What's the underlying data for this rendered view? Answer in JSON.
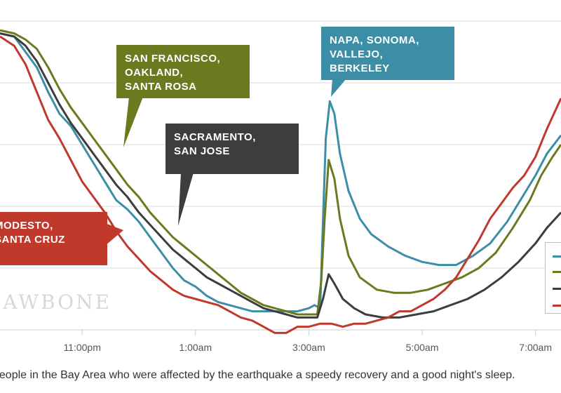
{
  "chart_data": {
    "type": "line",
    "title": "",
    "xlabel": "",
    "ylabel": "",
    "x_ticks": [
      "11:00pm",
      "1:00am",
      "3:00am",
      "5:00am",
      "7:00am"
    ],
    "x_tick_hours": [
      -1,
      1,
      3,
      5,
      7
    ],
    "xlim": [
      -2.45,
      7.45
    ],
    "ylim": [
      0,
      100
    ],
    "grid_y": [
      20,
      40,
      60,
      80,
      100
    ],
    "series": [
      {
        "name": "NAPA, SONOMA, VALLEJO, BERKELEY",
        "color": "#3b8ea5",
        "points": [
          [
            -2.45,
            96
          ],
          [
            -2.2,
            95
          ],
          [
            -2.0,
            90
          ],
          [
            -1.8,
            85
          ],
          [
            -1.6,
            77
          ],
          [
            -1.4,
            70
          ],
          [
            -1.2,
            66
          ],
          [
            -1.0,
            60
          ],
          [
            -0.8,
            54
          ],
          [
            -0.6,
            48
          ],
          [
            -0.4,
            42
          ],
          [
            -0.2,
            39
          ],
          [
            0.0,
            35
          ],
          [
            0.2,
            30
          ],
          [
            0.4,
            25
          ],
          [
            0.6,
            20
          ],
          [
            0.8,
            16
          ],
          [
            1.0,
            14
          ],
          [
            1.2,
            11
          ],
          [
            1.4,
            9
          ],
          [
            1.6,
            8
          ],
          [
            1.8,
            7
          ],
          [
            2.0,
            6
          ],
          [
            2.2,
            6
          ],
          [
            2.4,
            6
          ],
          [
            2.6,
            6
          ],
          [
            2.8,
            6
          ],
          [
            3.0,
            7
          ],
          [
            3.1,
            8
          ],
          [
            3.2,
            7
          ],
          [
            3.24,
            30
          ],
          [
            3.3,
            62
          ],
          [
            3.37,
            74
          ],
          [
            3.45,
            70
          ],
          [
            3.55,
            57
          ],
          [
            3.7,
            45
          ],
          [
            3.9,
            36
          ],
          [
            4.1,
            31
          ],
          [
            4.4,
            27
          ],
          [
            4.7,
            24
          ],
          [
            5.0,
            22
          ],
          [
            5.3,
            21
          ],
          [
            5.6,
            21
          ],
          [
            5.9,
            24
          ],
          [
            6.2,
            28
          ],
          [
            6.5,
            35
          ],
          [
            6.8,
            44
          ],
          [
            7.0,
            50
          ],
          [
            7.2,
            57
          ],
          [
            7.45,
            63
          ]
        ]
      },
      {
        "name": "SAN FRANCISCO, OAKLAND, SANTA ROSA",
        "color": "#6b7a1e",
        "points": [
          [
            -2.45,
            97
          ],
          [
            -2.2,
            96
          ],
          [
            -2.0,
            94
          ],
          [
            -1.8,
            91
          ],
          [
            -1.6,
            85
          ],
          [
            -1.4,
            78
          ],
          [
            -1.2,
            72
          ],
          [
            -1.0,
            67
          ],
          [
            -0.8,
            62
          ],
          [
            -0.6,
            57
          ],
          [
            -0.4,
            52
          ],
          [
            -0.2,
            47
          ],
          [
            0.0,
            43
          ],
          [
            0.2,
            38
          ],
          [
            0.4,
            34
          ],
          [
            0.6,
            30
          ],
          [
            0.8,
            27
          ],
          [
            1.0,
            24
          ],
          [
            1.2,
            21
          ],
          [
            1.4,
            18
          ],
          [
            1.6,
            15
          ],
          [
            1.8,
            12
          ],
          [
            2.0,
            10
          ],
          [
            2.2,
            8
          ],
          [
            2.4,
            7
          ],
          [
            2.6,
            6
          ],
          [
            2.8,
            5
          ],
          [
            3.0,
            5
          ],
          [
            3.15,
            5
          ],
          [
            3.22,
            16
          ],
          [
            3.28,
            36
          ],
          [
            3.35,
            55
          ],
          [
            3.45,
            49
          ],
          [
            3.55,
            36
          ],
          [
            3.7,
            24
          ],
          [
            3.9,
            17
          ],
          [
            4.2,
            13
          ],
          [
            4.5,
            12
          ],
          [
            4.8,
            12
          ],
          [
            5.1,
            13
          ],
          [
            5.4,
            15
          ],
          [
            5.7,
            17
          ],
          [
            6.0,
            20
          ],
          [
            6.3,
            25
          ],
          [
            6.6,
            33
          ],
          [
            6.9,
            42
          ],
          [
            7.1,
            50
          ],
          [
            7.3,
            56
          ],
          [
            7.45,
            60
          ]
        ]
      },
      {
        "name": "SACRAMENTO, SAN JOSE",
        "color": "#3d3d3d",
        "points": [
          [
            -2.45,
            96
          ],
          [
            -2.2,
            95
          ],
          [
            -2.0,
            92
          ],
          [
            -1.8,
            87
          ],
          [
            -1.6,
            80
          ],
          [
            -1.4,
            73
          ],
          [
            -1.2,
            67
          ],
          [
            -1.0,
            62
          ],
          [
            -0.8,
            57
          ],
          [
            -0.6,
            52
          ],
          [
            -0.4,
            47
          ],
          [
            -0.2,
            43
          ],
          [
            0.0,
            38
          ],
          [
            0.2,
            34
          ],
          [
            0.4,
            30
          ],
          [
            0.6,
            26
          ],
          [
            0.8,
            23
          ],
          [
            1.0,
            20
          ],
          [
            1.2,
            17
          ],
          [
            1.4,
            15
          ],
          [
            1.6,
            13
          ],
          [
            1.8,
            11
          ],
          [
            2.0,
            9
          ],
          [
            2.2,
            7
          ],
          [
            2.4,
            6
          ],
          [
            2.6,
            5
          ],
          [
            2.8,
            4
          ],
          [
            3.0,
            4
          ],
          [
            3.15,
            4
          ],
          [
            3.25,
            10
          ],
          [
            3.35,
            18
          ],
          [
            3.45,
            15
          ],
          [
            3.6,
            10
          ],
          [
            3.8,
            7
          ],
          [
            4.0,
            5
          ],
          [
            4.3,
            4
          ],
          [
            4.6,
            4
          ],
          [
            4.9,
            5
          ],
          [
            5.2,
            6
          ],
          [
            5.5,
            8
          ],
          [
            5.8,
            10
          ],
          [
            6.1,
            13
          ],
          [
            6.4,
            17
          ],
          [
            6.7,
            22
          ],
          [
            7.0,
            28
          ],
          [
            7.2,
            33
          ],
          [
            7.45,
            38
          ]
        ]
      },
      {
        "name": "MODESTO, SANTA CRUZ",
        "color": "#c0392b",
        "points": [
          [
            -2.45,
            95
          ],
          [
            -2.2,
            92
          ],
          [
            -2.0,
            86
          ],
          [
            -1.8,
            77
          ],
          [
            -1.6,
            68
          ],
          [
            -1.4,
            62
          ],
          [
            -1.2,
            55
          ],
          [
            -1.0,
            48
          ],
          [
            -0.8,
            43
          ],
          [
            -0.6,
            38
          ],
          [
            -0.4,
            32
          ],
          [
            -0.2,
            27
          ],
          [
            0.0,
            23
          ],
          [
            0.2,
            19
          ],
          [
            0.4,
            16
          ],
          [
            0.6,
            13
          ],
          [
            0.8,
            11
          ],
          [
            1.0,
            10
          ],
          [
            1.2,
            9
          ],
          [
            1.4,
            8
          ],
          [
            1.6,
            6
          ],
          [
            1.8,
            4
          ],
          [
            2.0,
            3
          ],
          [
            2.2,
            1
          ],
          [
            2.4,
            -1
          ],
          [
            2.6,
            -1
          ],
          [
            2.8,
            1
          ],
          [
            3.0,
            1
          ],
          [
            3.2,
            2
          ],
          [
            3.4,
            2
          ],
          [
            3.6,
            1
          ],
          [
            3.8,
            2
          ],
          [
            4.0,
            2
          ],
          [
            4.2,
            3
          ],
          [
            4.4,
            4
          ],
          [
            4.6,
            6
          ],
          [
            4.8,
            6
          ],
          [
            5.0,
            8
          ],
          [
            5.2,
            10
          ],
          [
            5.4,
            13
          ],
          [
            5.6,
            17
          ],
          [
            5.8,
            23
          ],
          [
            6.0,
            29
          ],
          [
            6.2,
            36
          ],
          [
            6.4,
            41
          ],
          [
            6.6,
            46
          ],
          [
            6.8,
            50
          ],
          [
            7.0,
            56
          ],
          [
            7.2,
            65
          ],
          [
            7.45,
            75
          ]
        ]
      }
    ]
  },
  "callouts": {
    "sf": [
      "SAN FRANCISCO,",
      "OAKLAND,",
      "SANTA ROSA"
    ],
    "sacramento": [
      "SACRAMENTO,",
      "SAN JOSE"
    ],
    "napa": [
      "NAPA, SONOMA,",
      "VALLEJO,",
      "BERKELEY"
    ],
    "modesto": [
      "MODESTO,",
      "SANTA CRUZ"
    ]
  },
  "watermark": "JAWBONE",
  "footer": "people in the Bay Area who were affected by the earthquake a speedy recovery and a good night's sleep."
}
